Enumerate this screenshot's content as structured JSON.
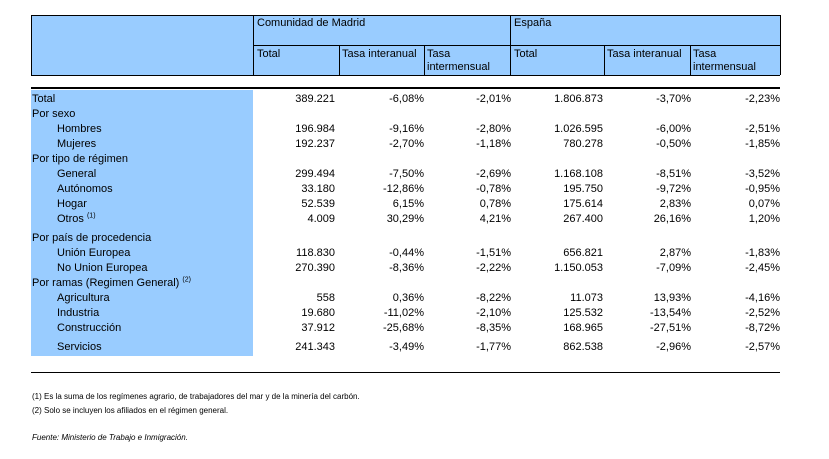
{
  "header": {
    "group_madrid": "Comunidad de Madrid",
    "group_espana": "España",
    "madrid_cols": [
      "Total",
      "Tasa interanual",
      "Tasa intermensual"
    ],
    "espana_cols": [
      "Total",
      "Tasa interanual",
      "Tasa intermensual"
    ]
  },
  "rows": [
    {
      "label": "Total",
      "type": "top",
      "values": [
        "389.221",
        "-6,08%",
        "-2,01%",
        "1.806.873",
        "-3,70%",
        "-2,23%"
      ]
    },
    {
      "label": "Por sexo",
      "type": "section",
      "values": []
    },
    {
      "label": "Hombres",
      "type": "item",
      "values": [
        "196.984",
        "-9,16%",
        "-2,80%",
        "1.026.595",
        "-6,00%",
        "-2,51%"
      ]
    },
    {
      "label": "Mujeres",
      "type": "item",
      "values": [
        "192.237",
        "-2,70%",
        "-1,18%",
        "780.278",
        "-0,50%",
        "-1,85%"
      ]
    },
    {
      "label": "Por tipo de régimen",
      "type": "section",
      "values": []
    },
    {
      "label": "General",
      "type": "item",
      "values": [
        "299.494",
        "-7,50%",
        "-2,69%",
        "1.168.108",
        "-8,51%",
        "-3,52%"
      ]
    },
    {
      "label": "Autónomos",
      "type": "item",
      "values": [
        "33.180",
        "-12,86%",
        "-0,78%",
        "195.750",
        "-9,72%",
        "-0,95%"
      ]
    },
    {
      "label": "Hogar",
      "type": "item",
      "values": [
        "52.539",
        "6,15%",
        "0,78%",
        "175.614",
        "2,83%",
        "0,07%"
      ]
    },
    {
      "label": "Otros",
      "note": "(1)",
      "type": "item",
      "values": [
        "4.009",
        "30,29%",
        "4,21%",
        "267.400",
        "26,16%",
        "1,20%"
      ]
    },
    {
      "label": "Por país de procedencia",
      "type": "section",
      "values": []
    },
    {
      "label": "Unión Europea",
      "type": "item",
      "values": [
        "118.830",
        "-0,44%",
        "-1,51%",
        "656.821",
        "2,87%",
        "-1,83%"
      ]
    },
    {
      "label": "No Union Europea",
      "type": "item",
      "values": [
        "270.390",
        "-8,36%",
        "-2,22%",
        "1.150.053",
        "-7,09%",
        "-2,45%"
      ]
    },
    {
      "label": "Por ramas (Regimen General)",
      "note": "(2)",
      "type": "section",
      "values": []
    },
    {
      "label": "Agricultura",
      "type": "item",
      "values": [
        "558",
        "0,36%",
        "-8,22%",
        "11.073",
        "13,93%",
        "-4,16%"
      ]
    },
    {
      "label": "Industria",
      "type": "item",
      "values": [
        "19.680",
        "-11,02%",
        "-2,10%",
        "125.532",
        "-13,54%",
        "-2,52%"
      ]
    },
    {
      "label": "Construcción",
      "type": "item",
      "values": [
        "37.912",
        "-25,68%",
        "-8,35%",
        "168.965",
        "-27,51%",
        "-8,72%"
      ]
    },
    {
      "label": "Servicios",
      "type": "item",
      "values": [
        "241.343",
        "-3,49%",
        "-1,77%",
        "862.538",
        "-2,96%",
        "-2,57%"
      ]
    }
  ],
  "footnotes": [
    "(1) Es la suma de los regímenes  agrario, de trabajadores del mar y de la minería del carbón.",
    "(2) Solo se incluyen los afiliados en el régimen general."
  ],
  "source": "Fuente: Ministerio de Trabajo e Inmigración.",
  "colors": {
    "label_bg": "#99ccff",
    "rule": "#000000"
  }
}
